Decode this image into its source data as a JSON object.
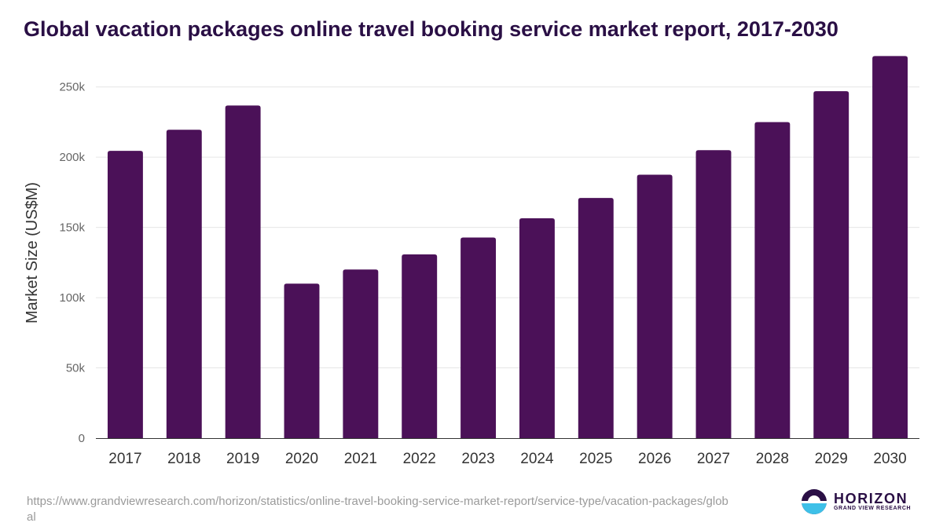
{
  "title": "Global vacation packages online travel booking service market report, 2017-2030",
  "source_url": "https://www.grandviewresearch.com/horizon/statistics/online-travel-booking-service-market-report/service-type/vacation-packages/global",
  "logo": {
    "name": "HORIZON",
    "tagline": "GRAND VIEW RESEARCH"
  },
  "colors": {
    "bar": "#4b1158",
    "title": "#2a0f45",
    "grid": "#e6e6e6",
    "axis": "#333333",
    "tick_label": "#666666",
    "logo_light": "#3ec0e8"
  },
  "chart_data": {
    "type": "bar",
    "title": "Global vacation packages online travel booking service market report, 2017-2030",
    "xlabel": "",
    "ylabel": "Market Size (US$M)",
    "categories": [
      "2017",
      "2018",
      "2019",
      "2020",
      "2021",
      "2022",
      "2023",
      "2024",
      "2025",
      "2026",
      "2027",
      "2028",
      "2029",
      "2030"
    ],
    "values": [
      204500,
      219500,
      236800,
      110000,
      120000,
      130800,
      142800,
      156500,
      171000,
      187500,
      205000,
      225000,
      247000,
      272000
    ],
    "ylim": [
      0,
      275000
    ],
    "yticks": [
      0,
      50000,
      100000,
      150000,
      200000,
      250000
    ],
    "ytick_labels": [
      "0",
      "50k",
      "100k",
      "150k",
      "200k",
      "250k"
    ],
    "grid": true,
    "legend": "none"
  }
}
